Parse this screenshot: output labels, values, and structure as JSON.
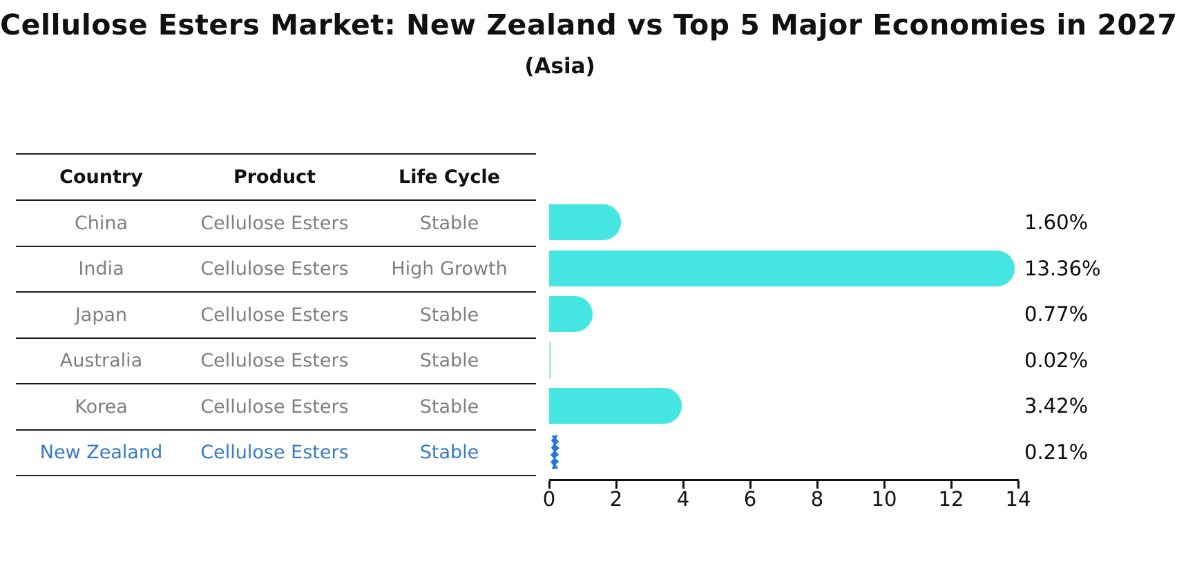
{
  "title": "Cellulose Esters Market: New Zealand vs Top 5 Major Economies in 2027",
  "subtitle": "(Asia)",
  "table": {
    "columns": [
      "Country",
      "Product",
      "Life Cycle"
    ],
    "rows": [
      {
        "country": "China",
        "product": "Cellulose Esters",
        "life_cycle": "Stable",
        "highlight": false
      },
      {
        "country": "India",
        "product": "Cellulose Esters",
        "life_cycle": "High Growth",
        "highlight": false
      },
      {
        "country": "Japan",
        "product": "Cellulose Esters",
        "life_cycle": "Stable",
        "highlight": false
      },
      {
        "country": "Australia",
        "product": "Cellulose Esters",
        "life_cycle": "Stable",
        "highlight": false
      },
      {
        "country": "Korea",
        "product": "Cellulose Esters",
        "life_cycle": "Stable",
        "highlight": false
      },
      {
        "country": "New Zealand",
        "product": "Cellulose Esters",
        "life_cycle": "Stable",
        "highlight": true
      }
    ]
  },
  "chart_data": {
    "type": "bar",
    "orientation": "horizontal",
    "title": "Cellulose Esters Market: New Zealand vs Top 5 Major Economies in 2027",
    "subtitle": "(Asia)",
    "categories": [
      "China",
      "India",
      "Japan",
      "Australia",
      "Korea",
      "New Zealand"
    ],
    "values": [
      1.6,
      13.36,
      0.77,
      0.02,
      3.42,
      0.21
    ],
    "value_labels": [
      "1.60%",
      "13.36%",
      "0.77%",
      "0.02%",
      "3.42%",
      "0.21%"
    ],
    "xlim": [
      0,
      14
    ],
    "xticks": [
      0,
      2,
      4,
      6,
      8,
      10,
      12,
      14
    ],
    "grid": false,
    "legend": "none",
    "highlight_category": "New Zealand"
  },
  "colors": {
    "bar": "#45e6e1",
    "bar_faint": "#a8efeb",
    "highlight_bar": "#2478db",
    "highlight_text": "#3679c8",
    "row_text": "#7f7f7f",
    "text": "#111111"
  }
}
